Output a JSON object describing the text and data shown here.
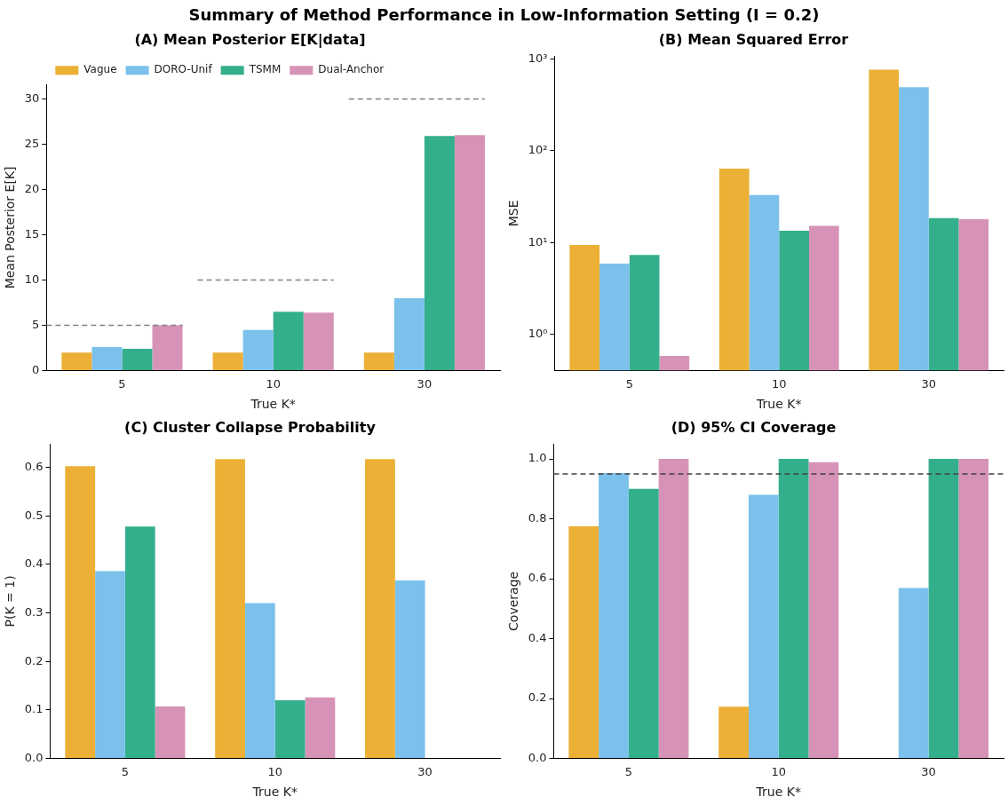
{
  "chart_data": [
    {
      "type": "bar",
      "title": "(A) Mean Posterior E[K|data]",
      "xlabel": "True K*",
      "ylabel": "Mean Posterior E[K]",
      "annotations": [
        "Summary of Method Performance in Low-Information Setting (I = 0.2)"
      ],
      "categories": [
        "5",
        "10",
        "30"
      ],
      "legend": "top left",
      "ylim": [
        0,
        31.6
      ],
      "yticks": [
        0,
        5,
        10,
        15,
        20,
        25,
        30
      ],
      "series": [
        {
          "name": "Vague",
          "color": "#ebb035",
          "values": [
            2.0,
            2.0,
            2.0
          ]
        },
        {
          "name": "DORO-Unif",
          "color": "#7bc1ec",
          "values": [
            2.6,
            4.5,
            8.0
          ]
        },
        {
          "name": "TSMM",
          "color": "#34af8c",
          "values": [
            2.4,
            6.5,
            25.9
          ]
        },
        {
          "name": "Dual-Anchor",
          "color": "#d693b7",
          "values": [
            5.0,
            6.4,
            26.0
          ]
        }
      ],
      "ref_lines": [
        {
          "axis": "y",
          "value": 5,
          "color": "#808080",
          "line_style": "dashed"
        },
        {
          "axis": "y",
          "value": 10,
          "color": "#808080",
          "line_style": "dashed"
        },
        {
          "axis": "y",
          "value": 30,
          "color": "#808080",
          "line_style": "dashed"
        }
      ]
    },
    {
      "type": "bar",
      "title": "(B) Mean Squared Error",
      "xlabel": "True K*",
      "ylabel": "MSE",
      "categories": [
        "5",
        "10",
        "30"
      ],
      "log": "y",
      "ylim": [
        0.4,
        1080
      ],
      "yticks": [
        {
          "value": 1,
          "label": "10⁰"
        },
        {
          "value": 10,
          "label": "10¹"
        },
        {
          "value": 100,
          "label": "10²"
        },
        {
          "value": 1000,
          "label": "10³"
        }
      ],
      "series": [
        {
          "color": "#ebb035",
          "values": [
            9.4,
            64,
            770
          ]
        },
        {
          "color": "#7bc1ec",
          "values": [
            5.9,
            33,
            495
          ]
        },
        {
          "color": "#34af8c",
          "values": [
            7.3,
            13.4,
            18.4
          ]
        },
        {
          "color": "#d693b7",
          "values": [
            0.58,
            15.2,
            17.9
          ]
        }
      ]
    },
    {
      "type": "bar",
      "title": "(C) Cluster Collapse Probability",
      "xlabel": "True K*",
      "ylabel": "P(K = 1)",
      "categories": [
        "5",
        "10",
        "30"
      ],
      "ylim": [
        0,
        0.648
      ],
      "yticks": [
        {
          "value": 0,
          "label": "0.0"
        },
        0.1,
        0.2,
        0.3,
        0.4,
        0.5,
        0.6
      ],
      "series": [
        {
          "color": "#ebb035",
          "values": [
            0.602,
            0.617,
            0.617
          ]
        },
        {
          "color": "#7bc1ec",
          "values": [
            0.386,
            0.32,
            0.367
          ]
        },
        {
          "color": "#34af8c",
          "values": [
            0.478,
            0.12,
            0
          ]
        },
        {
          "color": "#d693b7",
          "values": [
            0.107,
            0.126,
            0
          ]
        }
      ]
    },
    {
      "type": "bar",
      "title": "(D) 95% CI Coverage",
      "xlabel": "True K*",
      "ylabel": "Coverage",
      "categories": [
        "5",
        "10",
        "30"
      ],
      "ylim": [
        0,
        1.05
      ],
      "yticks": [
        {
          "value": 0,
          "label": "0.0"
        },
        0.2,
        0.4,
        0.6,
        0.8,
        {
          "value": 1,
          "label": "1.0"
        }
      ],
      "ref_lines": [
        {
          "axis": "y",
          "value": 0.95,
          "color": "#404040",
          "line_style": "dashed"
        }
      ],
      "series": [
        {
          "color": "#ebb035",
          "values": [
            0.775,
            0.173,
            0
          ]
        },
        {
          "color": "#7bc1ec",
          "values": [
            0.953,
            0.88,
            0.569
          ]
        },
        {
          "color": "#34af8c",
          "values": [
            0.9,
            1.0,
            1.0
          ]
        },
        {
          "color": "#d693b7",
          "values": [
            1.0,
            0.989,
            1.0
          ]
        }
      ]
    }
  ]
}
